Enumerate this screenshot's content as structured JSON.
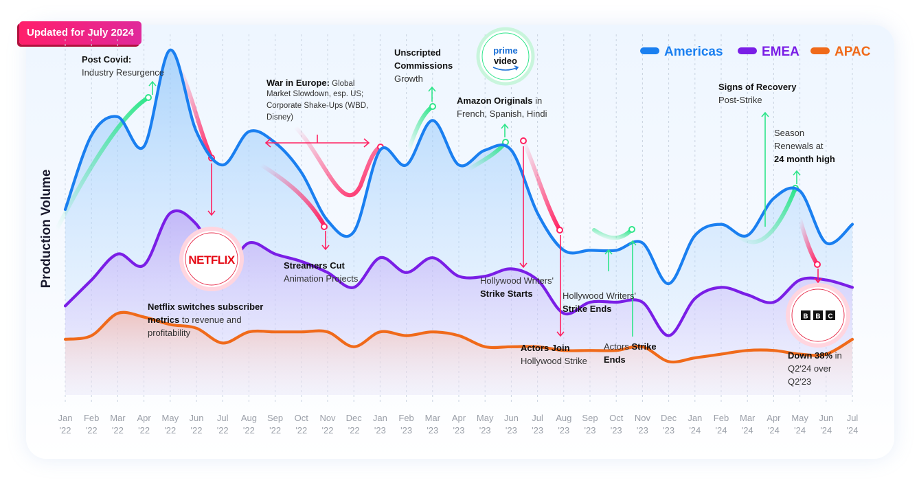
{
  "badge": "Updated for July 2024",
  "chart_data": {
    "type": "area",
    "ylabel": "Production Volume",
    "xlabel": "",
    "ylim": [
      0,
      100
    ],
    "legend_position": "top-right",
    "categories": [
      [
        "Jan",
        "'22"
      ],
      [
        "Feb",
        "'22"
      ],
      [
        "Mar",
        "'22"
      ],
      [
        "Apr",
        "'22"
      ],
      [
        "May",
        "'22"
      ],
      [
        "Jun",
        "'22"
      ],
      [
        "Jul",
        "'22"
      ],
      [
        "Aug",
        "'22"
      ],
      [
        "Sep",
        "'22"
      ],
      [
        "Oct",
        "'22"
      ],
      [
        "Nov",
        "'22"
      ],
      [
        "Dec",
        "'22"
      ],
      [
        "Jan",
        "'23"
      ],
      [
        "Feb",
        "'23"
      ],
      [
        "Mar",
        "'23"
      ],
      [
        "Apr",
        "'23"
      ],
      [
        "May",
        "'23"
      ],
      [
        "Jun",
        "'23"
      ],
      [
        "Jul",
        "'23"
      ],
      [
        "Aug",
        "'23"
      ],
      [
        "Sep",
        "'23"
      ],
      [
        "Oct",
        "'23"
      ],
      [
        "Nov",
        "'23"
      ],
      [
        "Dec",
        "'23"
      ],
      [
        "Jan",
        "'24"
      ],
      [
        "Feb",
        "'24"
      ],
      [
        "Mar",
        "'24"
      ],
      [
        "Apr",
        "'24"
      ],
      [
        "May",
        "'24"
      ],
      [
        "Jun",
        "'24"
      ],
      [
        "Jul",
        "'24"
      ]
    ],
    "series": [
      {
        "name": "Americas",
        "color": "#1a7ff0",
        "values": [
          50,
          70,
          75,
          67,
          93,
          71,
          62,
          71,
          68,
          60,
          47,
          44,
          66,
          62,
          74,
          62,
          66,
          66,
          49,
          39,
          39,
          39,
          41,
          30,
          43,
          46,
          43,
          53,
          55,
          41,
          46
        ]
      },
      {
        "name": "EMEA",
        "color": "#7a1ee6",
        "values": [
          24,
          31,
          38,
          35,
          49,
          46,
          34,
          41,
          38,
          36,
          33,
          29,
          37,
          33,
          37,
          32,
          32,
          34,
          31,
          22,
          25,
          25,
          25,
          16,
          26,
          29,
          27,
          25,
          31,
          31,
          29
        ]
      },
      {
        "name": "APAC",
        "color": "#f06a1a",
        "values": [
          15,
          16,
          22,
          21,
          19,
          18,
          14,
          17,
          17,
          17,
          17,
          13,
          17,
          16,
          17,
          16,
          13,
          13,
          13,
          12,
          12,
          12,
          13,
          9,
          10,
          11,
          12,
          12,
          11,
          11,
          15
        ]
      }
    ],
    "annotations": [
      {
        "id": "post-covid",
        "bold": "Post Covid:",
        "text": "Industry Resurgence"
      },
      {
        "id": "war-europe",
        "bold": "War in Europe:",
        "text": " Global",
        "lines": [
          "Market Slowdown, esp. US;",
          "Corporate Shake-Ups (WBD,",
          "Disney)"
        ]
      },
      {
        "id": "unscripted",
        "bold1": "Unscripted",
        "bold2": "Commissions",
        "text": "Growth"
      },
      {
        "id": "amazon",
        "bold": "Amazon Originals",
        "text": " in",
        "line2": "French, Spanish, Hindi"
      },
      {
        "id": "recovery",
        "bold": "Signs of Recovery",
        "text": "Post-Strike"
      },
      {
        "id": "renewals",
        "line1": "Season",
        "line2": "Renewals at",
        "bold": "24 month high"
      },
      {
        "id": "netflix-metrics",
        "bold1": "Netflix switches subscriber",
        "bold2": "metrics",
        "text": " to revenue and",
        "line3": "profitability"
      },
      {
        "id": "streamers",
        "bold": "Streamers Cut",
        "text": "Animation Projects"
      },
      {
        "id": "writers-start",
        "text": "Hollywood Writers'",
        "bold": "Strike Starts"
      },
      {
        "id": "writers-end",
        "text": "Hollywood Writers'",
        "bold": "Strike Ends"
      },
      {
        "id": "actors-join",
        "bold": "Actors Join",
        "text": "Hollywood Strike"
      },
      {
        "id": "actors-end",
        "text": "Actors ",
        "bold": "Strike",
        "bold2": "Ends"
      },
      {
        "id": "down38",
        "bold": "Down 38%",
        "text": " in",
        "line2": "Q2'24 over",
        "line3": "Q2'23"
      }
    ],
    "logos": {
      "netflix": "NETFLIX",
      "prime_top": "prime",
      "prime_bottom": "video",
      "bbc": [
        "B",
        "B",
        "C"
      ]
    }
  }
}
